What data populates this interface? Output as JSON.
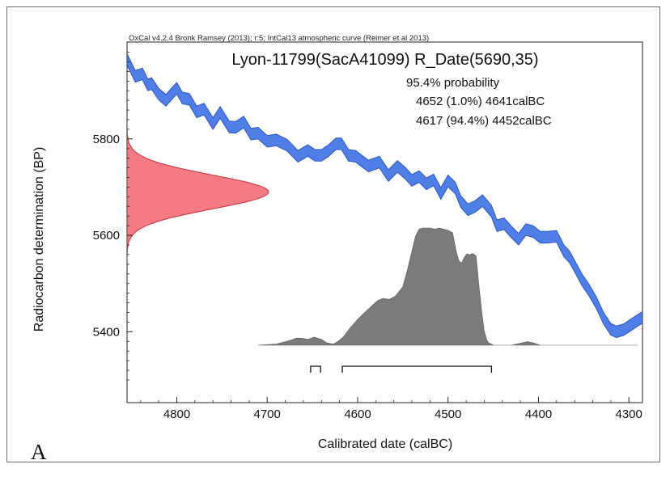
{
  "figure_label": "A",
  "chart_data": {
    "type": "area",
    "header": "OxCal v4.2.4 Bronk Ramsey (2013); r:5; IntCal13 atmospheric curve (Reimer et al 2013)",
    "title": "Lyon-11799(SacA41099) R_Date(5690,35)",
    "probability_label": "95.4% probability",
    "ranges": [
      {
        "label": "4652 (1.0%) 4641calBC",
        "from": 4652,
        "to": 4641
      },
      {
        "label": "4617 (94.4%) 4452calBC",
        "from": 4617,
        "to": 4452
      }
    ],
    "xlabel": "Calibrated date (calBC)",
    "ylabel": "Radiocarbon determination (BP)",
    "x_reversed": true,
    "xlim": [
      4855,
      4285
    ],
    "ylim": [
      5253,
      6001
    ],
    "x_ticks": [
      4800,
      4700,
      4600,
      4500,
      4400,
      4300
    ],
    "y_ticks": [
      5400,
      5600,
      5800
    ],
    "colors": {
      "curve": "#4f7fe6",
      "curve_edge": "#2a55c8",
      "measurement": "#f47a84",
      "measurement_edge": "#c8303e",
      "posterior": "#7b7b7b",
      "axis": "#222222"
    },
    "measurement": {
      "mean": 5690,
      "sd": 35
    },
    "calibration_curve": {
      "x": [
        4855,
        4846,
        4838,
        4832,
        4828,
        4820,
        4812,
        4806,
        4800,
        4794,
        4786,
        4778,
        4770,
        4760,
        4752,
        4742,
        4735,
        4726,
        4718,
        4710,
        4700,
        4690,
        4678,
        4666,
        4655,
        4647,
        4640,
        4632,
        4624,
        4618,
        4610,
        4602,
        4596,
        4588,
        4576,
        4566,
        4556,
        4548,
        4540,
        4532,
        4524,
        4516,
        4508,
        4500,
        4492,
        4486,
        4478,
        4470,
        4462,
        4452,
        4446,
        4438,
        4430,
        4422,
        4414,
        4406,
        4398,
        4390,
        4380,
        4372,
        4366,
        4360,
        4352,
        4344,
        4336,
        4328,
        4320,
        4314,
        4306,
        4298,
        4290,
        4285
      ],
      "y": [
        5965,
        5930,
        5935,
        5912,
        5915,
        5893,
        5880,
        5893,
        5905,
        5885,
        5882,
        5856,
        5862,
        5832,
        5855,
        5825,
        5824,
        5835,
        5810,
        5812,
        5795,
        5798,
        5787,
        5764,
        5776,
        5766,
        5766,
        5776,
        5790,
        5790,
        5766,
        5764,
        5755,
        5744,
        5752,
        5724,
        5743,
        5730,
        5714,
        5722,
        5707,
        5715,
        5687,
        5713,
        5698,
        5670,
        5653,
        5660,
        5672,
        5650,
        5620,
        5624,
        5607,
        5592,
        5612,
        5608,
        5596,
        5596,
        5598,
        5568,
        5556,
        5536,
        5508,
        5486,
        5460,
        5428,
        5405,
        5400,
        5404,
        5414,
        5424,
        5430
      ],
      "half_width": 12
    },
    "posterior": {
      "x": [
        4710,
        4690,
        4675,
        4668,
        4662,
        4655,
        4648,
        4640,
        4634,
        4627,
        4622,
        4616,
        4608,
        4600,
        4592,
        4585,
        4578,
        4572,
        4565,
        4558,
        4550,
        4545,
        4540,
        4536,
        4532,
        4528,
        4524,
        4520,
        4515,
        4510,
        4505,
        4500,
        4495,
        4491,
        4488,
        4485,
        4482,
        4479,
        4476,
        4474,
        4472,
        4469,
        4466,
        4463,
        4460,
        4457,
        4455,
        4452,
        4450,
        4446,
        4430,
        4418,
        4412,
        4406,
        4398,
        4380,
        4290
      ],
      "y": [
        0,
        0.01,
        0.04,
        0.06,
        0.06,
        0.05,
        0.07,
        0.05,
        0.02,
        0.01,
        0.03,
        0.07,
        0.15,
        0.22,
        0.28,
        0.33,
        0.38,
        0.4,
        0.39,
        0.42,
        0.5,
        0.64,
        0.8,
        0.93,
        0.99,
        1.0,
        1.0,
        1.0,
        0.99,
        1.0,
        0.99,
        0.98,
        0.96,
        0.8,
        0.72,
        0.7,
        0.75,
        0.78,
        0.77,
        0.78,
        0.78,
        0.76,
        0.52,
        0.3,
        0.12,
        0.04,
        0.02,
        0.01,
        0,
        0,
        0,
        0.02,
        0.03,
        0.02,
        0,
        0,
        0
      ]
    }
  }
}
